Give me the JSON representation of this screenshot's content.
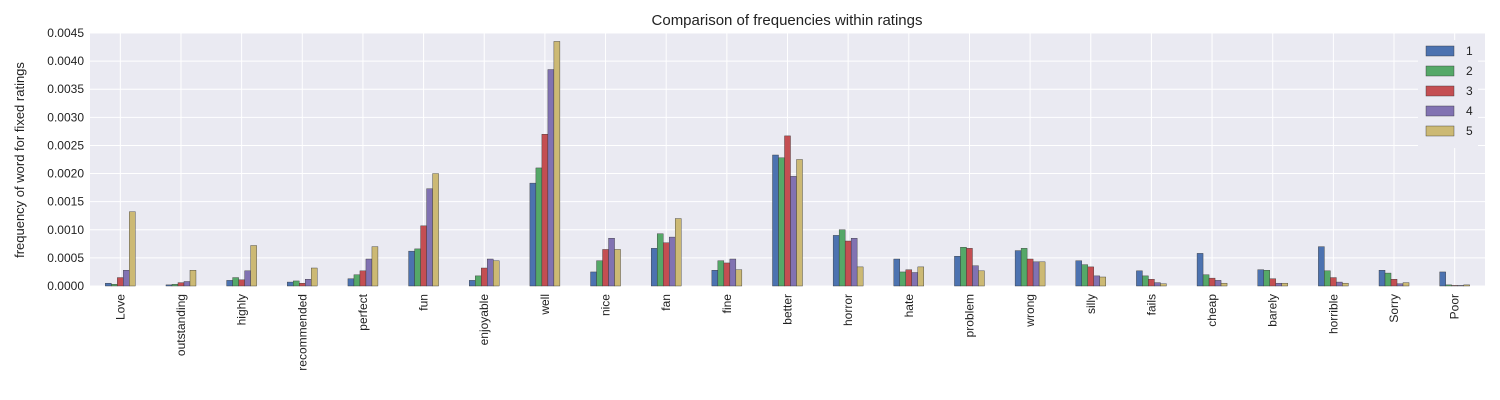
{
  "chart_data": {
    "type": "bar",
    "title": "Comparison of frequencies within ratings",
    "xlabel": "",
    "ylabel": "frequency of word for fixed ratings",
    "ylim": [
      0,
      0.0045
    ],
    "yticks": [
      "0.0000",
      "0.0005",
      "0.0010",
      "0.0015",
      "0.0020",
      "0.0025",
      "0.0030",
      "0.0035",
      "0.0040",
      "0.0045"
    ],
    "grid": true,
    "legend_position": "top-right",
    "categories": [
      "Love",
      "outstanding",
      "highly",
      "recommended",
      "perfect",
      "fun",
      "enjoyable",
      "well",
      "nice",
      "fan",
      "fine",
      "better",
      "horror",
      "hate",
      "problem",
      "wrong",
      "silly",
      "fails",
      "cheap",
      "barely",
      "horrible",
      "Sorry",
      "Poor"
    ],
    "series": [
      {
        "name": "1",
        "color": "#4c72b0",
        "values": [
          5e-05,
          2e-05,
          0.0001,
          7e-05,
          0.00013,
          0.00062,
          0.0001,
          0.00183,
          0.00025,
          0.00067,
          0.00028,
          0.00233,
          0.0009,
          0.00048,
          0.00053,
          0.00063,
          0.00045,
          0.00027,
          0.00058,
          0.00029,
          0.0007,
          0.00028,
          0.00025
        ]
      },
      {
        "name": "2",
        "color": "#55a868",
        "values": [
          3e-05,
          3e-05,
          0.00015,
          9e-05,
          0.0002,
          0.00066,
          0.00018,
          0.0021,
          0.00045,
          0.00093,
          0.00045,
          0.00228,
          0.001,
          0.00025,
          0.00069,
          0.00067,
          0.00038,
          0.00018,
          0.0002,
          0.00028,
          0.00027,
          0.00023,
          2e-05
        ]
      },
      {
        "name": "3",
        "color": "#c44e52",
        "values": [
          0.00015,
          6e-05,
          0.00011,
          5e-05,
          0.00027,
          0.00107,
          0.00032,
          0.0027,
          0.00065,
          0.00077,
          0.00041,
          0.00267,
          0.0008,
          0.00029,
          0.00067,
          0.00048,
          0.00034,
          0.00012,
          0.00014,
          0.00013,
          0.00015,
          0.00012,
          1e-05
        ]
      },
      {
        "name": "4",
        "color": "#8172b2",
        "values": [
          0.00028,
          8e-05,
          0.00027,
          0.00012,
          0.00048,
          0.00173,
          0.00048,
          0.00385,
          0.00085,
          0.00087,
          0.00048,
          0.00195,
          0.00085,
          0.00024,
          0.00036,
          0.00043,
          0.00018,
          6e-05,
          0.0001,
          5e-05,
          7e-05,
          4e-05,
          1e-05
        ]
      },
      {
        "name": "5",
        "color": "#ccb974",
        "values": [
          0.00132,
          0.00028,
          0.00072,
          0.00032,
          0.0007,
          0.002,
          0.00045,
          0.00435,
          0.00065,
          0.0012,
          0.00029,
          0.00225,
          0.00034,
          0.00034,
          0.00027,
          0.00043,
          0.00016,
          4e-05,
          5e-05,
          5e-05,
          5e-05,
          6e-05,
          2e-05
        ]
      }
    ]
  }
}
